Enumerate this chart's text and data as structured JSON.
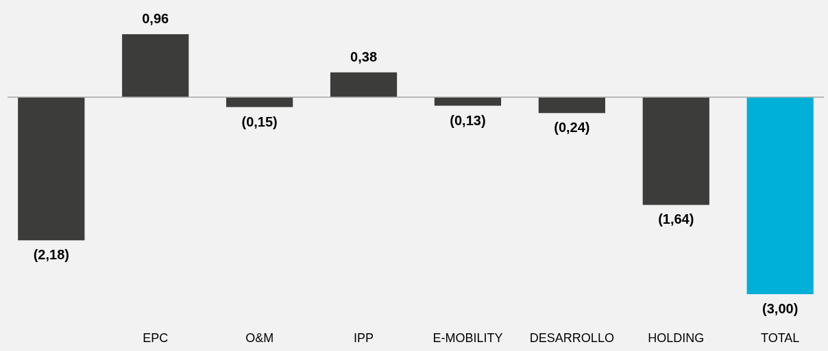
{
  "chart_data": {
    "type": "bar",
    "categories": [
      null,
      "EPC",
      "O&M",
      "IPP",
      "E-MOBILITY",
      "DESARROLLO",
      "HOLDING",
      "TOTAL"
    ],
    "values": [
      -2.18,
      0.96,
      -0.15,
      0.38,
      -0.13,
      -0.24,
      -1.64,
      -3.0
    ],
    "value_labels": [
      "(2,18)",
      "0,96",
      "(0,15)",
      "0,38",
      "(0,13)",
      "(0,24)",
      "(1,64)",
      "(3,00)"
    ],
    "colors": [
      "#3c3c3b",
      "#3c3c3b",
      "#3c3c3b",
      "#3c3c3b",
      "#3c3c3b",
      "#3c3c3b",
      "#3c3c3b",
      "#00b0d8"
    ],
    "grid": false
  }
}
